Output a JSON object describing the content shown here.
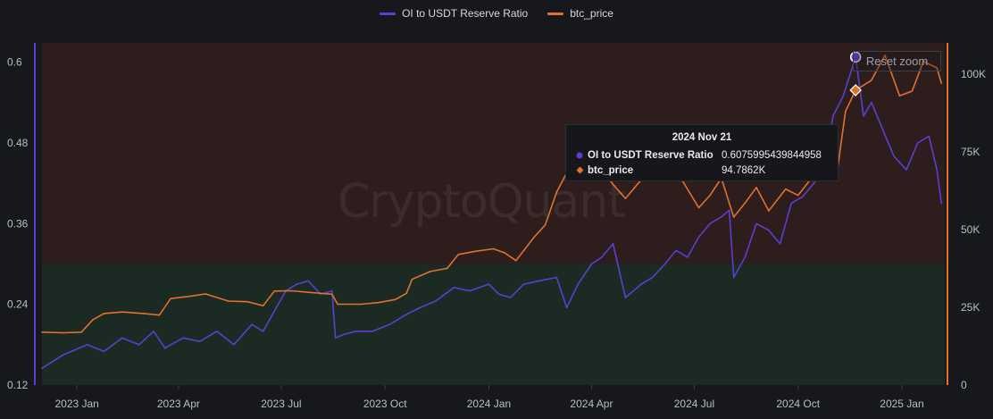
{
  "chart_data": {
    "type": "line",
    "title": "",
    "watermark": "CryptoQuant",
    "legend": {
      "placement": "top-center",
      "entries": [
        {
          "name": "OI to USDT Reserve Ratio",
          "color": "#5b3fd0"
        },
        {
          "name": "btc_price",
          "color": "#e0722c"
        }
      ]
    },
    "x_axis": {
      "type": "date",
      "range": [
        "2022-12-01",
        "2025-02-08"
      ],
      "ticks": [
        {
          "date": "2023-01-01",
          "label": "2023 Jan"
        },
        {
          "date": "2023-04-01",
          "label": "2023 Apr"
        },
        {
          "date": "2023-07-01",
          "label": "2023 Jul"
        },
        {
          "date": "2023-10-01",
          "label": "2023 Oct"
        },
        {
          "date": "2024-01-01",
          "label": "2024 Jan"
        },
        {
          "date": "2024-04-01",
          "label": "2024 Apr"
        },
        {
          "date": "2024-07-01",
          "label": "2024 Jul"
        },
        {
          "date": "2024-10-01",
          "label": "2024 Oct"
        },
        {
          "date": "2025-01-01",
          "label": "2025 Jan"
        }
      ]
    },
    "y_axis_left": {
      "series": "OI to USDT Reserve Ratio",
      "ylim": [
        0.12,
        0.6287
      ],
      "ticks": [
        0.12,
        0.24,
        0.36,
        0.48,
        0.6
      ],
      "tick_labels": [
        "0.12",
        "0.24",
        "0.36",
        "0.48",
        "0.6"
      ]
    },
    "y_axis_right": {
      "series": "btc_price",
      "ylim": [
        0,
        110000
      ],
      "ticks": [
        0,
        25000,
        50000,
        75000,
        100000
      ],
      "tick_labels": [
        "0",
        "25K",
        "50K",
        "75K",
        "100K"
      ]
    },
    "bands": [
      {
        "axis": "left",
        "from": 0.12,
        "to": 0.3,
        "color": "#1c2a24"
      },
      {
        "axis": "left",
        "from": 0.3,
        "to": 0.6287,
        "color": "#2e1d1d"
      }
    ],
    "series": [
      {
        "name": "OI to USDT Reserve Ratio",
        "axis": "left",
        "color": "#5b3fd0",
        "x": [
          "2022-12-01",
          "2022-12-20",
          "2023-01-10",
          "2023-01-25",
          "2023-02-10",
          "2023-02-25",
          "2023-03-10",
          "2023-03-20",
          "2023-04-05",
          "2023-04-20",
          "2023-05-05",
          "2023-05-20",
          "2023-06-05",
          "2023-06-15",
          "2023-06-25",
          "2023-07-05",
          "2023-07-15",
          "2023-07-25",
          "2023-08-05",
          "2023-08-15",
          "2023-08-18",
          "2023-08-25",
          "2023-09-05",
          "2023-09-20",
          "2023-10-05",
          "2023-10-20",
          "2023-11-01",
          "2023-11-15",
          "2023-12-01",
          "2023-12-15",
          "2024-01-01",
          "2024-01-10",
          "2024-01-20",
          "2024-02-01",
          "2024-02-15",
          "2024-03-01",
          "2024-03-10",
          "2024-03-20",
          "2024-04-01",
          "2024-04-10",
          "2024-04-20",
          "2024-05-01",
          "2024-05-15",
          "2024-05-25",
          "2024-06-05",
          "2024-06-15",
          "2024-06-25",
          "2024-07-05",
          "2024-07-15",
          "2024-07-25",
          "2024-08-01",
          "2024-08-05",
          "2024-08-15",
          "2024-08-25",
          "2024-09-05",
          "2024-09-15",
          "2024-09-25",
          "2024-10-05",
          "2024-10-15",
          "2024-10-25",
          "2024-11-01",
          "2024-11-10",
          "2024-11-21",
          "2024-11-28",
          "2024-12-05",
          "2024-12-15",
          "2024-12-25",
          "2025-01-05",
          "2025-01-15",
          "2025-01-25",
          "2025-02-01",
          "2025-02-05"
        ],
        "values": [
          0.145,
          0.165,
          0.18,
          0.17,
          0.19,
          0.18,
          0.2,
          0.175,
          0.19,
          0.185,
          0.2,
          0.18,
          0.21,
          0.2,
          0.23,
          0.26,
          0.27,
          0.275,
          0.255,
          0.26,
          0.19,
          0.195,
          0.2,
          0.2,
          0.21,
          0.225,
          0.235,
          0.245,
          0.265,
          0.26,
          0.27,
          0.255,
          0.25,
          0.27,
          0.275,
          0.28,
          0.235,
          0.27,
          0.3,
          0.31,
          0.33,
          0.25,
          0.27,
          0.28,
          0.3,
          0.32,
          0.31,
          0.34,
          0.36,
          0.37,
          0.38,
          0.28,
          0.31,
          0.36,
          0.35,
          0.33,
          0.39,
          0.4,
          0.42,
          0.45,
          0.52,
          0.55,
          0.6076,
          0.52,
          0.54,
          0.5,
          0.46,
          0.44,
          0.48,
          0.49,
          0.44,
          0.39
        ]
      },
      {
        "name": "btc_price",
        "axis": "right",
        "color": "#e0722c",
        "x": [
          "2022-12-01",
          "2022-12-20",
          "2023-01-05",
          "2023-01-15",
          "2023-01-25",
          "2023-02-10",
          "2023-03-01",
          "2023-03-15",
          "2023-03-25",
          "2023-04-10",
          "2023-04-25",
          "2023-05-15",
          "2023-06-01",
          "2023-06-15",
          "2023-06-25",
          "2023-07-10",
          "2023-07-25",
          "2023-08-15",
          "2023-08-20",
          "2023-09-10",
          "2023-09-25",
          "2023-10-10",
          "2023-10-20",
          "2023-10-25",
          "2023-11-10",
          "2023-11-25",
          "2023-12-05",
          "2023-12-20",
          "2024-01-05",
          "2024-01-15",
          "2024-01-25",
          "2024-02-10",
          "2024-02-20",
          "2024-03-01",
          "2024-03-14",
          "2024-03-25",
          "2024-04-10",
          "2024-04-20",
          "2024-05-01",
          "2024-05-15",
          "2024-05-25",
          "2024-06-05",
          "2024-06-20",
          "2024-07-05",
          "2024-07-15",
          "2024-07-25",
          "2024-08-05",
          "2024-08-15",
          "2024-08-25",
          "2024-09-05",
          "2024-09-20",
          "2024-10-01",
          "2024-10-15",
          "2024-10-25",
          "2024-11-05",
          "2024-11-12",
          "2024-11-21",
          "2024-12-05",
          "2024-12-17",
          "2024-12-30",
          "2025-01-10",
          "2025-01-20",
          "2025-02-01",
          "2025-02-05"
        ],
        "values": [
          17000,
          16800,
          17000,
          21000,
          23000,
          23500,
          23000,
          22500,
          27800,
          28500,
          29300,
          27000,
          26800,
          25500,
          30200,
          30300,
          29800,
          29200,
          26000,
          26000,
          26500,
          27500,
          29500,
          34000,
          36500,
          37500,
          42000,
          43000,
          43800,
          42500,
          40000,
          47500,
          51500,
          62000,
          71000,
          67000,
          69500,
          64500,
          60000,
          66000,
          68500,
          70000,
          66000,
          57000,
          61000,
          66500,
          54000,
          58500,
          63500,
          56000,
          63000,
          61000,
          67500,
          67500,
          69500,
          88000,
          94786,
          98000,
          106000,
          93000,
          94500,
          104000,
          102000,
          97000
        ]
      }
    ],
    "tooltip": {
      "date_label": "2024 Nov 21",
      "rows": [
        {
          "label": "OI to USDT Reserve Ratio",
          "value": "0.6075995439844958",
          "color": "#5b3fd0",
          "marker": "circle"
        },
        {
          "label": "btc_price",
          "value": "94.7862K",
          "color": "#e0722c",
          "marker": "diamond"
        }
      ],
      "highlight_date": "2024-11-21",
      "highlight_ratio": 0.6076,
      "highlight_price": 94786
    },
    "grid": false
  },
  "ui": {
    "reset_zoom_label": "Reset zoom"
  }
}
